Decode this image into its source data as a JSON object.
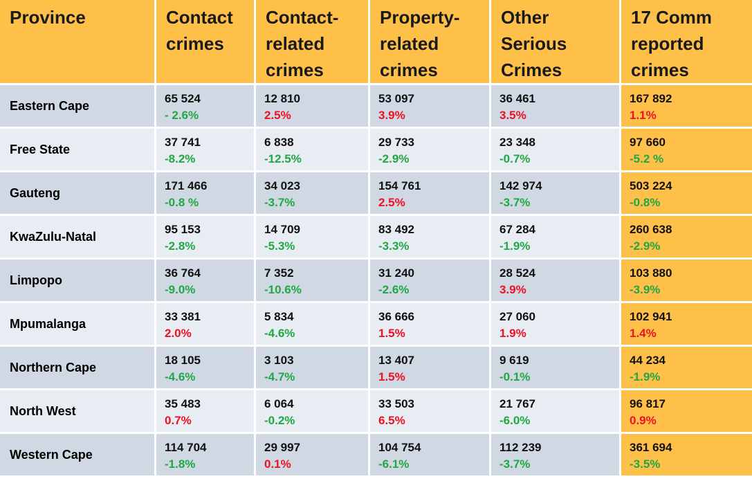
{
  "colors": {
    "header_bg": "#ffc04a",
    "row_odd_bg": "#d0d8e3",
    "row_even_bg": "#e8ecf3",
    "increase": "#ee1122",
    "decrease": "#1fa844"
  },
  "headers": [
    "Province",
    "Contact crimes",
    "Contact-related crimes",
    "Property-related crimes",
    "Other Serious Crimes",
    "17 Comm reported crimes"
  ],
  "rows": [
    {
      "province": "Eastern Cape",
      "cells": [
        {
          "value": "65 524",
          "change": "- 2.6%",
          "dir": "neg"
        },
        {
          "value": "12 810",
          "change": "2.5%",
          "dir": "pos"
        },
        {
          "value": "53 097",
          "change": "3.9%",
          "dir": "pos"
        },
        {
          "value": "36 461",
          "change": "3.5%",
          "dir": "pos"
        },
        {
          "value": "167 892",
          "change": "1.1%",
          "dir": "pos"
        }
      ]
    },
    {
      "province": "Free State",
      "cells": [
        {
          "value": "37 741",
          "change": "-8.2%",
          "dir": "neg"
        },
        {
          "value": "6 838",
          "change": "-12.5%",
          "dir": "neg"
        },
        {
          "value": "29 733",
          "change": "-2.9%",
          "dir": "neg"
        },
        {
          "value": "23 348",
          "change": "-0.7%",
          "dir": "neg"
        },
        {
          "value": "97 660",
          "change": "-5.2 %",
          "dir": "neg"
        }
      ]
    },
    {
      "province": "Gauteng",
      "cells": [
        {
          "value": "171 466",
          "change": "-0.8 %",
          "dir": "neg"
        },
        {
          "value": "34 023",
          "change": "-3.7%",
          "dir": "neg"
        },
        {
          "value": "154 761",
          "change": "2.5%",
          "dir": "pos"
        },
        {
          "value": "142 974",
          "change": "-3.7%",
          "dir": "neg"
        },
        {
          "value": "503 224",
          "change": "-0.8%",
          "dir": "neg"
        }
      ]
    },
    {
      "province": "KwaZulu-Natal",
      "cells": [
        {
          "value": "95 153",
          "change": "-2.8%",
          "dir": "neg"
        },
        {
          "value": "14 709",
          "change": "-5.3%",
          "dir": "neg"
        },
        {
          "value": "83 492",
          "change": "-3.3%",
          "dir": "neg"
        },
        {
          "value": "67  284",
          "change": "-1.9%",
          "dir": "neg"
        },
        {
          "value": "260 638",
          "change": "-2.9%",
          "dir": "neg"
        }
      ]
    },
    {
      "province": "Limpopo",
      "cells": [
        {
          "value": "36 764",
          "change": "-9.0%",
          "dir": "neg"
        },
        {
          "value": "7 352",
          "change": "-10.6%",
          "dir": "neg"
        },
        {
          "value": "31 240",
          "change": "-2.6%",
          "dir": "neg"
        },
        {
          "value": "28 524",
          "change": "3.9%",
          "dir": "pos"
        },
        {
          "value": "103 880",
          "change": "-3.9%",
          "dir": "neg"
        }
      ]
    },
    {
      "province": "Mpumalanga",
      "cells": [
        {
          "value": "33 381",
          "change": "2.0%",
          "dir": "pos"
        },
        {
          "value": "5 834",
          "change": "-4.6%",
          "dir": "neg"
        },
        {
          "value": "36 666",
          "change": "1.5%",
          "dir": "pos"
        },
        {
          "value": "27 060",
          "change": "1.9%",
          "dir": "pos"
        },
        {
          "value": "102 941",
          "change": "1.4%",
          "dir": "pos"
        }
      ]
    },
    {
      "province": "Northern Cape",
      "cells": [
        {
          "value": "18 105",
          "change": "-4.6%",
          "dir": "neg"
        },
        {
          "value": "3 103",
          "change": "-4.7%",
          "dir": "neg"
        },
        {
          "value": "13 407",
          "change": "1.5%",
          "dir": "pos"
        },
        {
          "value": "9 619",
          "change": "-0.1%",
          "dir": "neg"
        },
        {
          "value": "44 234",
          "change": "-1.9%",
          "dir": "neg"
        }
      ]
    },
    {
      "province": "North West",
      "cells": [
        {
          "value": "35 483",
          "change": "0.7%",
          "dir": "pos"
        },
        {
          "value": "6 064",
          "change": "-0.2%",
          "dir": "neg"
        },
        {
          "value": "33 503",
          "change": "6.5%",
          "dir": "pos"
        },
        {
          "value": "21 767",
          "change": "-6.0%",
          "dir": "neg"
        },
        {
          "value": "96 817",
          "change": "0.9%",
          "dir": "pos"
        }
      ]
    },
    {
      "province": "Western Cape",
      "cells": [
        {
          "value": "114 704",
          "change": "-1.8%",
          "dir": "neg"
        },
        {
          "value": "29 997",
          "change": "0.1%",
          "dir": "pos"
        },
        {
          "value": "104 754",
          "change": "-6.1%",
          "dir": "neg"
        },
        {
          "value": "112 239",
          "change": "-3.7%",
          "dir": "neg"
        },
        {
          "value": "361 694",
          "change": "-3.5%",
          "dir": "neg"
        }
      ]
    }
  ]
}
